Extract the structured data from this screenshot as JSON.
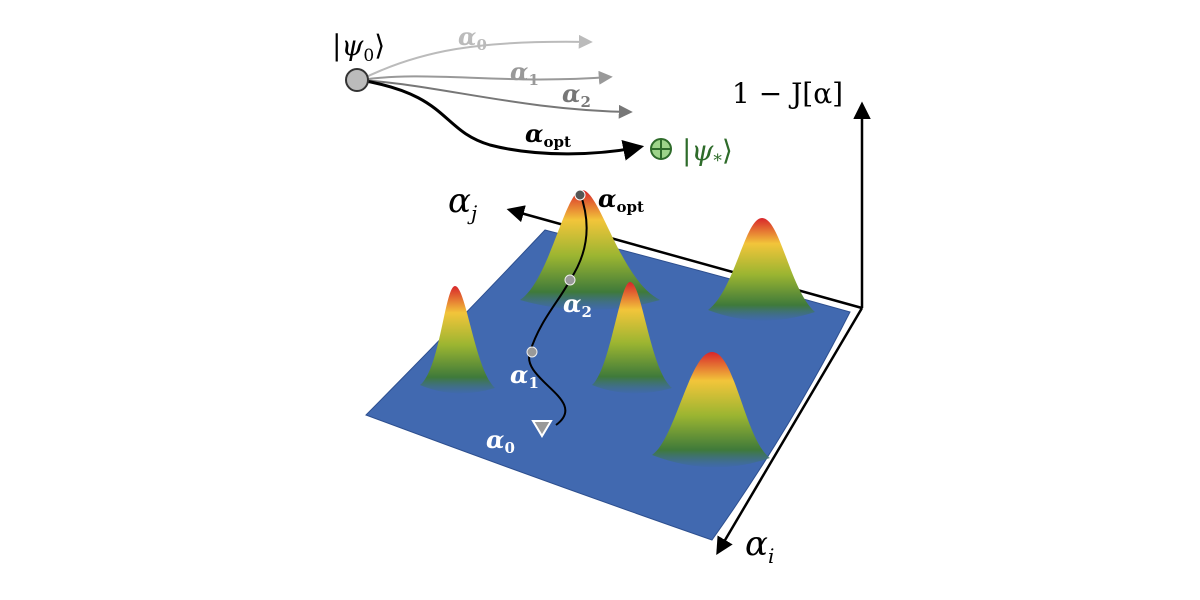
{
  "top_diagram": {
    "initial_state": {
      "open": "|ψ",
      "sub": "0",
      "close": "⟩"
    },
    "target_state": {
      "open": "|ψ",
      "sub": "*",
      "close": "⟩"
    },
    "trajectory_labels": [
      {
        "main": "α",
        "sub": "0"
      },
      {
        "main": "α",
        "sub": "1"
      },
      {
        "main": "α",
        "sub": "2"
      },
      {
        "main": "α",
        "sub": "opt"
      }
    ]
  },
  "landscape": {
    "vertical_axis": "1 − J[α]",
    "axis_j": {
      "main": "α",
      "sub": "j"
    },
    "axis_i": {
      "main": "α",
      "sub": "i"
    },
    "path_labels": [
      {
        "main": "α",
        "sub": "opt"
      },
      {
        "main": "α",
        "sub": "2"
      },
      {
        "main": "α",
        "sub": "1"
      },
      {
        "main": "α",
        "sub": "0"
      }
    ]
  }
}
